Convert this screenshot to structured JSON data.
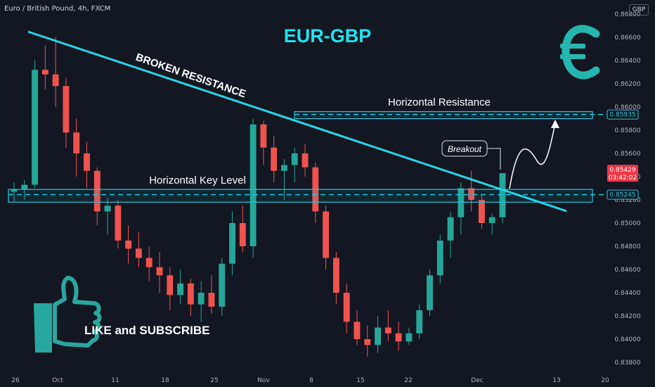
{
  "header": {
    "symbol": "Euro / British Pound, 4h, FXCM",
    "currency": "GBP"
  },
  "chart_data": {
    "type": "candlestick",
    "title": "EUR-GBP",
    "y_axis": {
      "ticks": [
        "0.86800",
        "0.86600",
        "0.86400",
        "0.86200",
        "0.86000",
        "0.85800",
        "0.85600",
        "0.85400",
        "0.85200",
        "0.85000",
        "0.84800",
        "0.84600",
        "0.84400",
        "0.84200",
        "0.84000",
        "0.83800"
      ],
      "range": [
        0.8377,
        0.868
      ]
    },
    "x_axis": {
      "ticks": [
        "26",
        "Oct",
        "11",
        "18",
        "25",
        "Nov",
        "8",
        "15",
        "22",
        "Dec",
        "13",
        "20"
      ]
    },
    "price_labels": {
      "horizontal_resistance": "0.85935",
      "current_price": "0.85429",
      "countdown": "03:42:02",
      "key_level": "0.85245"
    },
    "levels": {
      "resistance_top": 0.8596,
      "resistance_bottom": 0.859,
      "resistance_line": 0.85935,
      "key_top": 0.8529,
      "key_bottom": 0.8518,
      "key_line": 0.85245,
      "current": 0.85429
    },
    "trendline": {
      "label": "BROKEN RESISTANCE",
      "start": {
        "date_index": 0,
        "price": 0.8665
      },
      "end": {
        "date_index": 73,
        "price": 0.8514
      }
    },
    "annotations": [
      {
        "text": "Horizontal Resistance"
      },
      {
        "text": "Horizontal Key Level"
      },
      {
        "text": "Breakout"
      },
      {
        "text": "LIKE and SUBSCRIBE"
      }
    ],
    "candles": [
      [
        0.8527,
        0.8535,
        0.8518,
        0.8529
      ],
      [
        0.8529,
        0.8537,
        0.852,
        0.8533
      ],
      [
        0.8533,
        0.864,
        0.853,
        0.8632
      ],
      [
        0.8632,
        0.8653,
        0.8615,
        0.8628
      ],
      [
        0.8628,
        0.866,
        0.86,
        0.8618
      ],
      [
        0.8618,
        0.8625,
        0.8565,
        0.8578
      ],
      [
        0.8578,
        0.859,
        0.854,
        0.856
      ],
      [
        0.856,
        0.857,
        0.853,
        0.8545
      ],
      [
        0.8545,
        0.8548,
        0.8498,
        0.851
      ],
      [
        0.851,
        0.8522,
        0.849,
        0.8515
      ],
      [
        0.8515,
        0.852,
        0.8478,
        0.8485
      ],
      [
        0.8485,
        0.8498,
        0.8465,
        0.8478
      ],
      [
        0.8478,
        0.8492,
        0.8462,
        0.847
      ],
      [
        0.847,
        0.848,
        0.845,
        0.8462
      ],
      [
        0.8462,
        0.8475,
        0.844,
        0.8455
      ],
      [
        0.8455,
        0.8462,
        0.8425,
        0.8438
      ],
      [
        0.8438,
        0.846,
        0.843,
        0.8448
      ],
      [
        0.8448,
        0.8452,
        0.842,
        0.843
      ],
      [
        0.843,
        0.845,
        0.8415,
        0.844
      ],
      [
        0.844,
        0.8455,
        0.8422,
        0.8428
      ],
      [
        0.8428,
        0.847,
        0.842,
        0.8465
      ],
      [
        0.8465,
        0.851,
        0.8455,
        0.85
      ],
      [
        0.85,
        0.8515,
        0.8475,
        0.848
      ],
      [
        0.848,
        0.859,
        0.847,
        0.8585
      ],
      [
        0.8585,
        0.8588,
        0.855,
        0.8565
      ],
      [
        0.8565,
        0.8575,
        0.8535,
        0.8545
      ],
      [
        0.8545,
        0.8555,
        0.852,
        0.855
      ],
      [
        0.855,
        0.8565,
        0.8535,
        0.856
      ],
      [
        0.856,
        0.8568,
        0.854,
        0.8548
      ],
      [
        0.8548,
        0.8552,
        0.85,
        0.851
      ],
      [
        0.851,
        0.8515,
        0.846,
        0.847
      ],
      [
        0.847,
        0.8475,
        0.843,
        0.844
      ],
      [
        0.844,
        0.8448,
        0.8405,
        0.8415
      ],
      [
        0.8415,
        0.8425,
        0.8395,
        0.84
      ],
      [
        0.84,
        0.8412,
        0.8385,
        0.8395
      ],
      [
        0.8395,
        0.842,
        0.8388,
        0.841
      ],
      [
        0.841,
        0.8425,
        0.8398,
        0.8405
      ],
      [
        0.8405,
        0.8415,
        0.839,
        0.8398
      ],
      [
        0.8398,
        0.841,
        0.8395,
        0.8405
      ],
      [
        0.8405,
        0.843,
        0.84,
        0.8425
      ],
      [
        0.8425,
        0.846,
        0.842,
        0.8455
      ],
      [
        0.8455,
        0.849,
        0.8448,
        0.8485
      ],
      [
        0.8485,
        0.851,
        0.847,
        0.8505
      ],
      [
        0.8505,
        0.8535,
        0.849,
        0.853
      ],
      [
        0.853,
        0.8545,
        0.851,
        0.852
      ],
      [
        0.852,
        0.8525,
        0.8495,
        0.85
      ],
      [
        0.85,
        0.8508,
        0.849,
        0.8505
      ],
      [
        0.8505,
        0.854,
        0.85,
        0.8543
      ]
    ]
  }
}
